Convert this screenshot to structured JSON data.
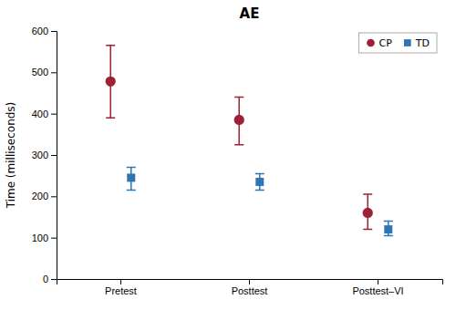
{
  "chart_data": {
    "type": "errorbar",
    "title": "AE",
    "ylabel": "Time (milliseconds)",
    "categories": [
      "Pretest",
      "Posttest",
      "Posttest–VI"
    ],
    "series": [
      {
        "name": "CP",
        "color": "#9B2335",
        "marker": "circle",
        "values": [
          478,
          385,
          160
        ],
        "error_lower": [
          88,
          60,
          40
        ],
        "error_upper": [
          87,
          55,
          45
        ]
      },
      {
        "name": "TD",
        "color": "#2E75B6",
        "marker": "square",
        "values": [
          245,
          235,
          120
        ],
        "error_lower": [
          30,
          20,
          15
        ],
        "error_upper": [
          25,
          20,
          20
        ]
      }
    ],
    "ylim": [
      0,
      600
    ],
    "yticks": [
      0,
      100,
      200,
      300,
      400,
      500,
      600
    ],
    "legend": "upper right",
    "grid": false
  }
}
